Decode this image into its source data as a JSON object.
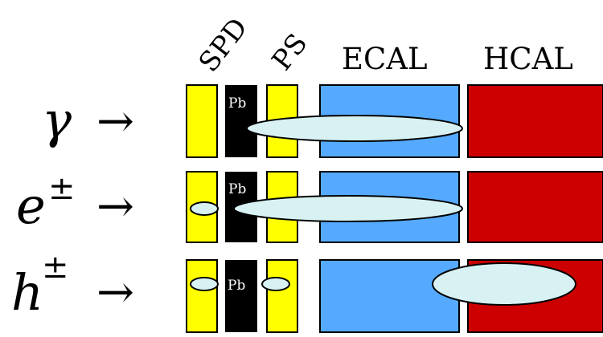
{
  "detectors": {
    "spd": "SPD",
    "ps": "PS",
    "ecal": "ECAL",
    "hcal": "HCAL",
    "lead": "Pb"
  },
  "particles": [
    {
      "symbol": "γ",
      "sup": "",
      "arrow": "→"
    },
    {
      "symbol": "e",
      "sup": "±",
      "arrow": "→"
    },
    {
      "symbol": "h",
      "sup": "±",
      "arrow": "→"
    }
  ],
  "colors": {
    "scintillator": "#ffff00",
    "lead": "#000000",
    "ecal": "#55aaff",
    "hcal": "#cc0000",
    "shower": "#d8f2f4",
    "outline": "#000000"
  }
}
